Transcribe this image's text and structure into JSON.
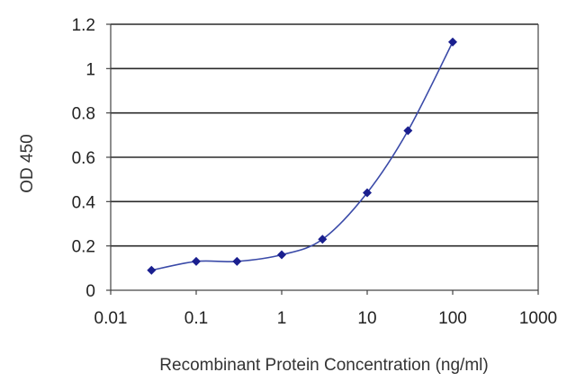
{
  "chart_data": {
    "type": "scatter",
    "title": "",
    "xlabel": "Recombinant Protein Concentration (ng/ml)",
    "ylabel": "OD 450",
    "x_scale": "log",
    "xlim": [
      0.01,
      1000
    ],
    "ylim": [
      0,
      1.2
    ],
    "x_ticks": [
      0.01,
      0.1,
      1,
      10,
      100,
      1000
    ],
    "x_tick_labels": [
      "0.01",
      "0.1",
      "1",
      "10",
      "100",
      "1000"
    ],
    "y_ticks": [
      0,
      0.2,
      0.4,
      0.6,
      0.8,
      1,
      1.2
    ],
    "y_tick_labels": [
      "0",
      "0.2",
      "0.4",
      "0.6",
      "0.8",
      "1",
      "1.2"
    ],
    "grid": "horizontal",
    "legend": "none",
    "fit_line": "smooth",
    "series": [
      {
        "x": [
          0.03,
          0.1,
          0.3,
          1,
          3,
          10,
          30,
          100
        ],
        "y": [
          0.09,
          0.13,
          0.13,
          0.16,
          0.23,
          0.44,
          0.72,
          1.12
        ]
      }
    ],
    "colors": {
      "marker": "#1a1f8f",
      "line": "#3a4aa8",
      "grid": "#2a2a2a",
      "axis": "#444444"
    }
  }
}
